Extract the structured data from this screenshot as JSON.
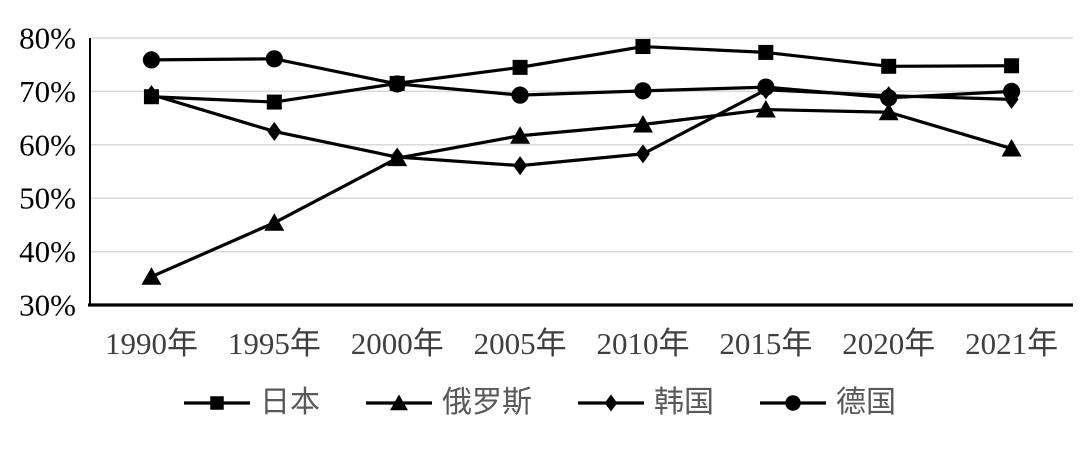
{
  "chart_data": {
    "type": "line",
    "title": "",
    "xlabel": "",
    "ylabel": "",
    "categories": [
      "1990年",
      "1995年",
      "2000年",
      "2005年",
      "2010年",
      "2015年",
      "2020年",
      "2021年"
    ],
    "series": [
      {
        "name": "日本",
        "marker": "square",
        "values": [
          69.0,
          68.0,
          71.5,
          74.5,
          78.4,
          77.3,
          74.7,
          74.8
        ]
      },
      {
        "name": "俄罗斯",
        "marker": "triangle",
        "values": [
          35.3,
          45.4,
          57.5,
          61.7,
          63.8,
          66.6,
          66.1,
          59.3
        ]
      },
      {
        "name": "韩国",
        "marker": "diamond",
        "values": [
          69.4,
          62.5,
          57.7,
          56.1,
          58.3,
          70.3,
          69.2,
          68.5
        ]
      },
      {
        "name": "德国",
        "marker": "circle",
        "values": [
          75.9,
          76.1,
          71.4,
          69.3,
          70.1,
          70.8,
          68.8,
          70.0
        ]
      }
    ],
    "ylim": [
      30,
      80
    ],
    "ytick_labels": [
      "30%",
      "40%",
      "50%",
      "60%",
      "70%",
      "80%"
    ],
    "yticks": [
      30,
      40,
      50,
      60,
      70,
      80
    ],
    "grid": true,
    "legend_position": "bottom",
    "colors": {
      "line": "#000000",
      "grid": "#d9d9d9",
      "axis": "#000000",
      "ytick_text": "#000000",
      "xtick_text": "#3f3f3f",
      "legend_text": "#595959",
      "background": "#ffffff"
    }
  }
}
